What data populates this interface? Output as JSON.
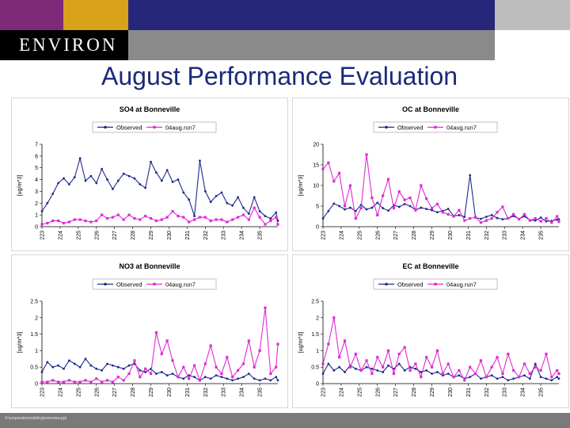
{
  "header": {
    "logo_text": "ENVIRON",
    "colors": {
      "purple": "#7d2a79",
      "gold": "#d9a21a",
      "navy": "#26277a",
      "black": "#000000",
      "light_gray": "#bdbdbd",
      "dark_gray": "#8a8a8a"
    }
  },
  "slide_title": "August Performance Evaluation",
  "footer": {
    "path": "V:\\corporate\\modeling\\overview.ppt"
  },
  "chart_data": [
    {
      "type": "line",
      "title": "SO4 at Bonneville",
      "ylabel": "[ug/m^3]",
      "ylim": [
        0,
        7
      ],
      "yticks": [
        0,
        1,
        2,
        3,
        4,
        5,
        6,
        7
      ],
      "xlim": [
        223,
        236
      ],
      "xticks": [
        223,
        224,
        225,
        226,
        227,
        228,
        229,
        230,
        231,
        232,
        233,
        234,
        235
      ],
      "legend": [
        "Observed",
        "04aug.run7"
      ],
      "series": [
        {
          "name": "Observed",
          "color": "#1f2a8c",
          "x": [
            223,
            223.3,
            223.6,
            223.9,
            224.2,
            224.5,
            224.8,
            225.1,
            225.4,
            225.7,
            226,
            226.3,
            226.6,
            226.9,
            227.2,
            227.5,
            227.8,
            228.1,
            228.4,
            228.7,
            229,
            229.3,
            229.6,
            229.9,
            230.2,
            230.5,
            230.8,
            231.1,
            231.4,
            231.7,
            232,
            232.3,
            232.6,
            232.9,
            233.2,
            233.5,
            233.8,
            234.1,
            234.4,
            234.7,
            235,
            235.3,
            235.6,
            235.9,
            236
          ],
          "y": [
            1.3,
            2.0,
            2.8,
            3.7,
            4.1,
            3.6,
            4.2,
            5.8,
            3.9,
            4.3,
            3.7,
            4.9,
            4.0,
            3.2,
            3.9,
            4.5,
            4.3,
            4.1,
            3.6,
            3.3,
            5.5,
            4.6,
            3.9,
            4.8,
            3.8,
            4.0,
            2.9,
            2.3,
            0.9,
            5.6,
            3.0,
            2.1,
            2.6,
            2.9,
            2.0,
            1.8,
            2.5,
            1.6,
            1.1,
            2.5,
            1.3,
            0.9,
            0.7,
            1.2,
            0.5
          ]
        },
        {
          "name": "04aug.run7",
          "color": "#e02ad6",
          "x": [
            223,
            223.3,
            223.6,
            223.9,
            224.2,
            224.5,
            224.8,
            225.1,
            225.4,
            225.7,
            226,
            226.3,
            226.6,
            226.9,
            227.2,
            227.5,
            227.8,
            228.1,
            228.4,
            228.7,
            229,
            229.3,
            229.6,
            229.9,
            230.2,
            230.5,
            230.8,
            231.1,
            231.4,
            231.7,
            232,
            232.3,
            232.6,
            232.9,
            233.2,
            233.5,
            233.8,
            234.1,
            234.4,
            234.7,
            235,
            235.3,
            235.6,
            235.9,
            236
          ],
          "y": [
            0.2,
            0.3,
            0.5,
            0.5,
            0.3,
            0.4,
            0.6,
            0.6,
            0.5,
            0.4,
            0.5,
            1.0,
            0.7,
            0.8,
            1.0,
            0.6,
            1.0,
            0.7,
            0.6,
            0.9,
            0.7,
            0.5,
            0.6,
            0.8,
            1.3,
            0.9,
            0.8,
            0.4,
            0.6,
            0.8,
            0.8,
            0.5,
            0.6,
            0.6,
            0.4,
            0.6,
            0.8,
            1.0,
            0.6,
            1.6,
            0.8,
            0.2,
            0.5,
            0.8,
            0.2
          ]
        }
      ]
    },
    {
      "type": "line",
      "title": "OC at Bonneville",
      "ylabel": "[ug/m^3]",
      "ylim": [
        0,
        20
      ],
      "yticks": [
        0,
        5,
        10,
        15,
        20
      ],
      "xlim": [
        223,
        236
      ],
      "xticks": [
        223,
        224,
        225,
        226,
        227,
        228,
        229,
        230,
        231,
        232,
        233,
        234,
        235
      ],
      "legend": [
        "Observed",
        "04aug.run7"
      ],
      "series": [
        {
          "name": "Observed",
          "color": "#1f2a8c",
          "x": [
            223,
            223.3,
            223.6,
            223.9,
            224.2,
            224.5,
            224.8,
            225.1,
            225.4,
            225.7,
            226,
            226.3,
            226.6,
            226.9,
            227.2,
            227.5,
            227.8,
            228.1,
            228.4,
            228.7,
            229,
            229.3,
            229.6,
            229.9,
            230.2,
            230.5,
            230.8,
            231.1,
            231.4,
            231.7,
            232,
            232.3,
            232.6,
            232.9,
            233.2,
            233.5,
            233.8,
            234.1,
            234.4,
            234.7,
            235,
            235.3,
            235.6,
            235.9,
            236
          ],
          "y": [
            2.0,
            3.8,
            5.6,
            5.0,
            4.2,
            4.6,
            3.8,
            5.3,
            4.2,
            4.6,
            5.8,
            4.5,
            3.9,
            5.2,
            4.8,
            5.5,
            5.0,
            4.1,
            4.6,
            4.3,
            4.0,
            3.5,
            3.8,
            4.3,
            2.6,
            2.8,
            2.4,
            12.5,
            2.2,
            1.9,
            2.4,
            2.8,
            2.1,
            1.8,
            2.0,
            2.6,
            1.9,
            2.5,
            1.6,
            1.5,
            2.2,
            1.3,
            1.4,
            1.7,
            1.8
          ]
        },
        {
          "name": "04aug.run7",
          "color": "#e02ad6",
          "x": [
            223,
            223.3,
            223.6,
            223.9,
            224.2,
            224.5,
            224.8,
            225.1,
            225.4,
            225.7,
            226,
            226.3,
            226.6,
            226.9,
            227.2,
            227.5,
            227.8,
            228.1,
            228.4,
            228.7,
            229,
            229.3,
            229.6,
            229.9,
            230.2,
            230.5,
            230.8,
            231.1,
            231.4,
            231.7,
            232,
            232.3,
            232.6,
            232.9,
            233.2,
            233.5,
            233.8,
            234.1,
            234.4,
            234.7,
            235,
            235.3,
            235.6,
            235.9,
            236
          ],
          "y": [
            14.0,
            15.5,
            11.0,
            13.0,
            5.0,
            10.0,
            2.0,
            4.5,
            17.5,
            7.0,
            2.8,
            7.5,
            11.5,
            4.5,
            8.5,
            6.5,
            7.0,
            4.0,
            10.0,
            6.8,
            4.5,
            5.5,
            3.5,
            3.0,
            2.5,
            4.0,
            1.5,
            2.0,
            2.3,
            1.0,
            1.5,
            2.0,
            3.5,
            4.8,
            2.0,
            3.0,
            1.8,
            3.0,
            1.5,
            2.0,
            1.3,
            2.0,
            1.0,
            2.5,
            1.2
          ]
        }
      ]
    },
    {
      "type": "line",
      "title": "NO3 at Bonneville",
      "ylabel": "[ug/m^3]",
      "ylim": [
        0,
        2.5
      ],
      "yticks": [
        0,
        0.5,
        1,
        1.5,
        2,
        2.5
      ],
      "xlim": [
        223,
        236
      ],
      "xticks": [
        223,
        224,
        225,
        226,
        227,
        228,
        229,
        230,
        231,
        232,
        233,
        234,
        235
      ],
      "legend": [
        "Observed",
        "04aug.run7"
      ],
      "series": [
        {
          "name": "Observed",
          "color": "#1f2a8c",
          "x": [
            223,
            223.3,
            223.6,
            223.9,
            224.2,
            224.5,
            224.8,
            225.1,
            225.4,
            225.7,
            226,
            226.3,
            226.6,
            226.9,
            227.2,
            227.5,
            227.8,
            228.1,
            228.4,
            228.7,
            229,
            229.3,
            229.6,
            229.9,
            230.2,
            230.5,
            230.8,
            231.1,
            231.4,
            231.7,
            232,
            232.3,
            232.6,
            232.9,
            233.2,
            233.5,
            233.8,
            234.1,
            234.4,
            234.7,
            235,
            235.3,
            235.6,
            235.9,
            236
          ],
          "y": [
            0.35,
            0.65,
            0.5,
            0.55,
            0.45,
            0.7,
            0.6,
            0.5,
            0.75,
            0.55,
            0.45,
            0.4,
            0.6,
            0.55,
            0.5,
            0.45,
            0.55,
            0.6,
            0.4,
            0.35,
            0.45,
            0.3,
            0.35,
            0.25,
            0.3,
            0.2,
            0.15,
            0.25,
            0.2,
            0.1,
            0.2,
            0.15,
            0.25,
            0.2,
            0.15,
            0.1,
            0.15,
            0.2,
            0.3,
            0.15,
            0.1,
            0.15,
            0.1,
            0.2,
            0.1
          ]
        },
        {
          "name": "04aug.run7",
          "color": "#e02ad6",
          "x": [
            223,
            223.3,
            223.6,
            223.9,
            224.2,
            224.5,
            224.8,
            225.1,
            225.4,
            225.7,
            226,
            226.3,
            226.6,
            226.9,
            227.2,
            227.5,
            227.8,
            228.1,
            228.4,
            228.7,
            229,
            229.3,
            229.6,
            229.9,
            230.2,
            230.5,
            230.8,
            231.1,
            231.4,
            231.7,
            232,
            232.3,
            232.6,
            232.9,
            233.2,
            233.5,
            233.8,
            234.1,
            234.4,
            234.7,
            235,
            235.3,
            235.6,
            235.9,
            236
          ],
          "y": [
            0.05,
            0.05,
            0.1,
            0.05,
            0.05,
            0.1,
            0.05,
            0.05,
            0.1,
            0.05,
            0.15,
            0.05,
            0.1,
            0.05,
            0.2,
            0.1,
            0.3,
            0.7,
            0.2,
            0.45,
            0.3,
            1.55,
            0.9,
            1.3,
            0.7,
            0.2,
            0.5,
            0.15,
            0.55,
            0.1,
            0.6,
            1.15,
            0.5,
            0.3,
            0.8,
            0.2,
            0.4,
            0.6,
            1.3,
            0.5,
            1.0,
            2.3,
            0.3,
            0.5,
            1.2
          ]
        }
      ]
    },
    {
      "type": "line",
      "title": "EC at Bonneville",
      "ylabel": "[ug/m^3]",
      "ylim": [
        0,
        2.5
      ],
      "yticks": [
        0,
        0.5,
        1,
        1.5,
        2,
        2.5
      ],
      "xlim": [
        223,
        236
      ],
      "xticks": [
        223,
        224,
        225,
        226,
        227,
        228,
        229,
        230,
        231,
        232,
        233,
        234,
        235
      ],
      "legend": [
        "Observed",
        "04aug.run7"
      ],
      "series": [
        {
          "name": "Observed",
          "color": "#1f2a8c",
          "x": [
            223,
            223.3,
            223.6,
            223.9,
            224.2,
            224.5,
            224.8,
            225.1,
            225.4,
            225.7,
            226,
            226.3,
            226.6,
            226.9,
            227.2,
            227.5,
            227.8,
            228.1,
            228.4,
            228.7,
            229,
            229.3,
            229.6,
            229.9,
            230.2,
            230.5,
            230.8,
            231.1,
            231.4,
            231.7,
            232,
            232.3,
            232.6,
            232.9,
            233.2,
            233.5,
            233.8,
            234.1,
            234.4,
            234.7,
            235,
            235.3,
            235.6,
            235.9,
            236
          ],
          "y": [
            0.3,
            0.6,
            0.4,
            0.5,
            0.35,
            0.55,
            0.45,
            0.4,
            0.5,
            0.45,
            0.4,
            0.35,
            0.55,
            0.45,
            0.6,
            0.4,
            0.5,
            0.45,
            0.35,
            0.4,
            0.3,
            0.35,
            0.25,
            0.3,
            0.2,
            0.25,
            0.15,
            0.2,
            0.3,
            0.15,
            0.2,
            0.25,
            0.15,
            0.2,
            0.1,
            0.15,
            0.2,
            0.25,
            0.15,
            0.6,
            0.2,
            0.15,
            0.1,
            0.2,
            0.15
          ]
        },
        {
          "name": "04aug.run7",
          "color": "#e02ad6",
          "x": [
            223,
            223.3,
            223.6,
            223.9,
            224.2,
            224.5,
            224.8,
            225.1,
            225.4,
            225.7,
            226,
            226.3,
            226.6,
            226.9,
            227.2,
            227.5,
            227.8,
            228.1,
            228.4,
            228.7,
            229,
            229.3,
            229.6,
            229.9,
            230.2,
            230.5,
            230.8,
            231.1,
            231.4,
            231.7,
            232,
            232.3,
            232.6,
            232.9,
            233.2,
            233.5,
            233.8,
            234.1,
            234.4,
            234.7,
            235,
            235.3,
            235.6,
            235.9,
            236
          ],
          "y": [
            0.6,
            1.2,
            2.0,
            0.8,
            1.3,
            0.5,
            0.9,
            0.4,
            0.7,
            0.3,
            0.8,
            0.5,
            1.0,
            0.3,
            0.9,
            1.1,
            0.4,
            0.6,
            0.2,
            0.8,
            0.5,
            1.0,
            0.3,
            0.6,
            0.2,
            0.4,
            0.1,
            0.5,
            0.3,
            0.7,
            0.2,
            0.5,
            0.8,
            0.3,
            0.9,
            0.4,
            0.2,
            0.6,
            0.3,
            0.5,
            0.4,
            0.9,
            0.2,
            0.4,
            0.3
          ]
        }
      ]
    }
  ]
}
